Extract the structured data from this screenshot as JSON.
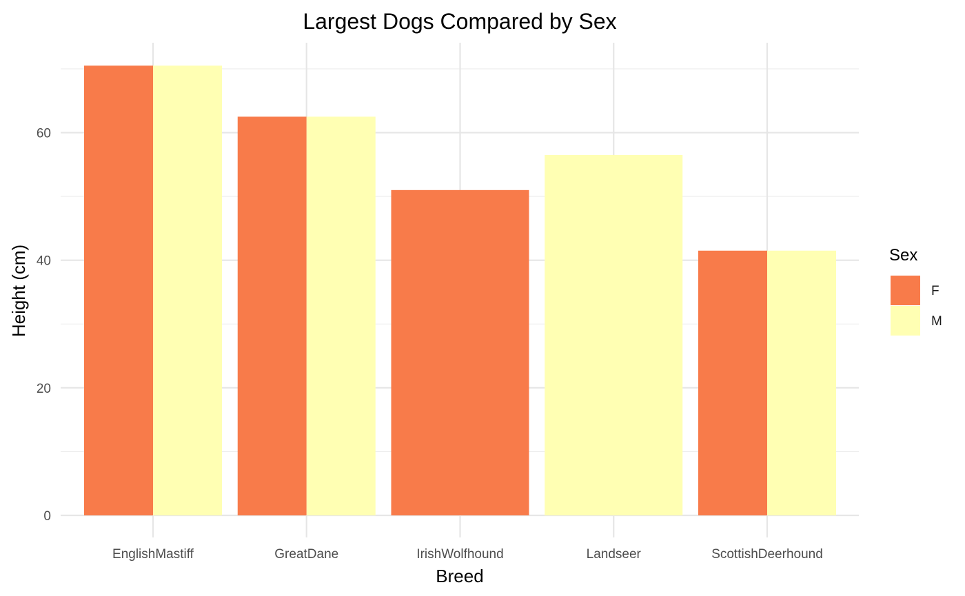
{
  "chart_data": {
    "type": "bar",
    "title": "Largest Dogs Compared by Sex",
    "xlabel": "Breed",
    "ylabel": "Height (cm)",
    "categories": [
      "EnglishMastiff",
      "GreatDane",
      "IrishWolfhound",
      "Landseer",
      "ScottishDeerhound"
    ],
    "series": [
      {
        "name": "F",
        "color": "#F87B4A",
        "values": [
          70.5,
          62.5,
          51.0,
          null,
          41.5
        ]
      },
      {
        "name": "M",
        "color": "#FFFFB3",
        "values": [
          70.5,
          62.5,
          null,
          56.5,
          41.5
        ]
      }
    ],
    "ylim": [
      0,
      72
    ],
    "yticks": [
      0,
      20,
      40,
      60
    ],
    "grid": true,
    "legend": {
      "title": "Sex",
      "position": "right"
    }
  }
}
